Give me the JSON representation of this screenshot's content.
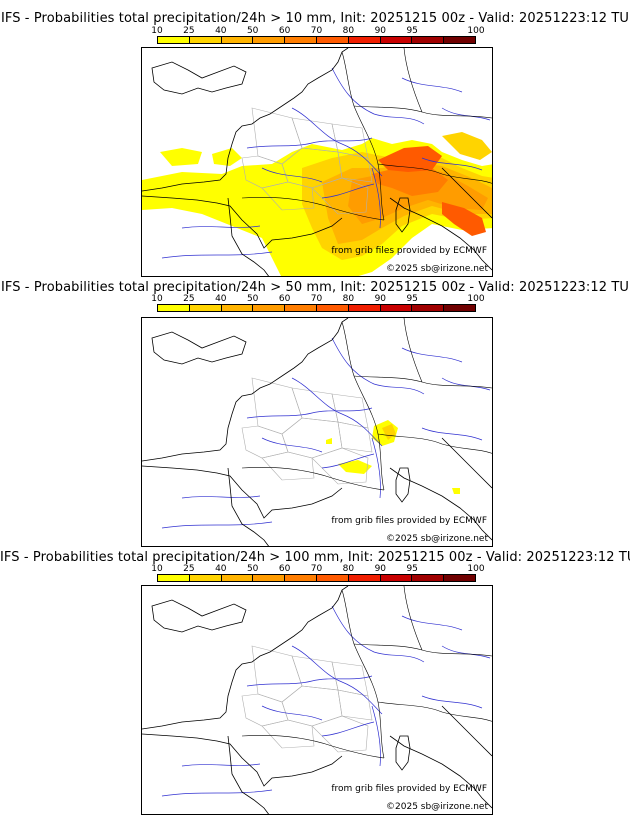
{
  "legend": {
    "labels": [
      "10",
      "25",
      "40",
      "50",
      "60",
      "70",
      "80",
      "90",
      "95",
      "100"
    ],
    "colors": [
      "#ffff00",
      "#ffd400",
      "#ffb400",
      "#ff9c00",
      "#ff7d00",
      "#ff5a00",
      "#f01e00",
      "#c80000",
      "#a00000",
      "#700000"
    ]
  },
  "panels": [
    {
      "title": "IFS - Probabilities total precipitation/24h > 10 mm, Init: 20251215 00z - Valid: 20251223:12 TU",
      "credit_source": "from grib files provided by ECMWF",
      "credit_copy": "©2025 sb@irizone.net"
    },
    {
      "title": "IFS - Probabilities total precipitation/24h > 50 mm, Init: 20251215 00z - Valid: 20251223:12 TU",
      "credit_source": "from grib files provided by ECMWF",
      "credit_copy": "©2025 sb@irizone.net"
    },
    {
      "title": "IFS - Probabilities total precipitation/24h > 100 mm, Init: 20251215 00z - Valid: 20251223:12 TU",
      "credit_source": "from grib files provided by ECMWF",
      "credit_copy": "©2025 sb@irizone.net"
    }
  ]
}
